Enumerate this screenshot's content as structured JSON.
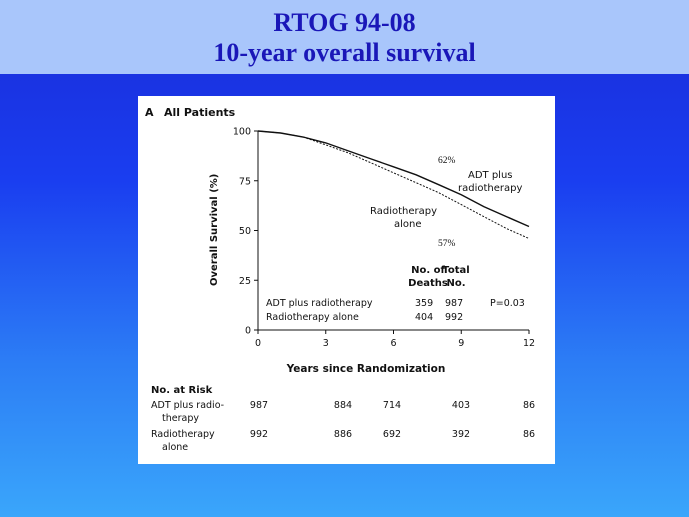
{
  "slide": {
    "title_line1": "RTOG 94-08",
    "title_line2": "10-year overall survival"
  },
  "chart_data": {
    "type": "line",
    "panel_label": "A",
    "title": "All Patients",
    "xlabel": "Years since Randomization",
    "ylabel": "Overall Survival (%)",
    "xlim": [
      0,
      12
    ],
    "ylim": [
      0,
      100
    ],
    "xticks": [
      "0",
      "3",
      "6",
      "9",
      "12"
    ],
    "yticks": [
      "0",
      "25",
      "50",
      "75",
      "100"
    ],
    "series": [
      {
        "name": "ADT plus radiotherapy",
        "label": "ADT plus radiotherapy",
        "style": "solid",
        "x": [
          0,
          1,
          2,
          3,
          4,
          5,
          6,
          7,
          8,
          9,
          10,
          11,
          12
        ],
        "y": [
          100,
          99,
          97,
          94,
          90,
          86,
          82,
          78,
          73,
          68,
          62,
          57,
          52
        ],
        "annotation": "62%"
      },
      {
        "name": "Radiotherapy alone",
        "label": "Radiotherapy alone",
        "style": "dashed",
        "x": [
          0,
          1,
          2,
          3,
          4,
          5,
          6,
          7,
          8,
          9,
          10,
          11,
          12
        ],
        "y": [
          100,
          99,
          97,
          93,
          89,
          84,
          79,
          74,
          69,
          63,
          57,
          51,
          46
        ],
        "annotation": "57%"
      }
    ],
    "curve_labels": {
      "adt": [
        "ADT plus",
        "radiotherapy"
      ],
      "rt": [
        "Radiotherapy",
        "alone"
      ]
    },
    "stats_table": {
      "headers_line1": [
        "No. of",
        "Total"
      ],
      "headers_line2": [
        "Deaths",
        "No."
      ],
      "rows": [
        {
          "label": "ADT plus radiotherapy",
          "deaths": "359",
          "total": "987",
          "p": "P=0.03"
        },
        {
          "label": "Radiotherapy alone",
          "deaths": "404",
          "total": "992",
          "p": ""
        }
      ]
    },
    "at_risk": {
      "title": "No. at Risk",
      "rows": [
        {
          "label": [
            "ADT plus radio-",
            "therapy"
          ],
          "values": [
            "987",
            "884",
            "714",
            "403",
            "86"
          ]
        },
        {
          "label": [
            "Radiotherapy",
            "alone"
          ],
          "values": [
            "992",
            "886",
            "692",
            "392",
            "86"
          ]
        }
      ]
    }
  }
}
